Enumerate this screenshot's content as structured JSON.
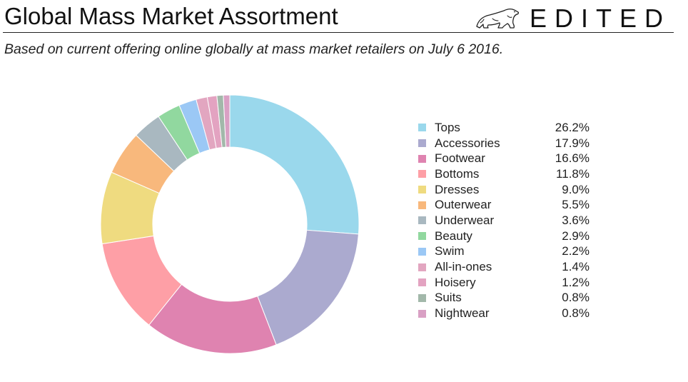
{
  "header": {
    "title": "Global Mass Market Assortment",
    "brand": "EDITED",
    "logo_icon": "polar-bear-icon"
  },
  "subtitle": "Based on current offering online globally at mass market retailers on July 6 2016.",
  "chart_data": {
    "type": "pie",
    "style": "donut",
    "legend_position": "right",
    "unit": "%",
    "categories": [
      "Tops",
      "Accessories",
      "Footwear",
      "Bottoms",
      "Dresses",
      "Outerwear",
      "Underwear",
      "Beauty",
      "Swim",
      "All-in-ones",
      "Hoisery",
      "Suits",
      "Nightwear"
    ],
    "values": [
      26.2,
      17.9,
      16.6,
      11.8,
      9.0,
      5.5,
      3.6,
      2.9,
      2.2,
      1.4,
      1.2,
      0.8,
      0.8
    ],
    "labels": [
      "26.2%",
      "17.9%",
      "16.6%",
      "11.8%",
      "9.0%",
      "5.5%",
      "3.6%",
      "2.9%",
      "2.2%",
      "1.4%",
      "1.2%",
      "0.8%",
      "0.8%"
    ],
    "colors": [
      "#9AD8EC",
      "#ABAACF",
      "#DF83B0",
      "#FE9FA6",
      "#EFDB80",
      "#F8B87C",
      "#A9B8C0",
      "#91D89F",
      "#9BC8F5",
      "#E2A6C0",
      "#E3A3C1",
      "#A2B8AA",
      "#D9A0C4"
    ]
  }
}
